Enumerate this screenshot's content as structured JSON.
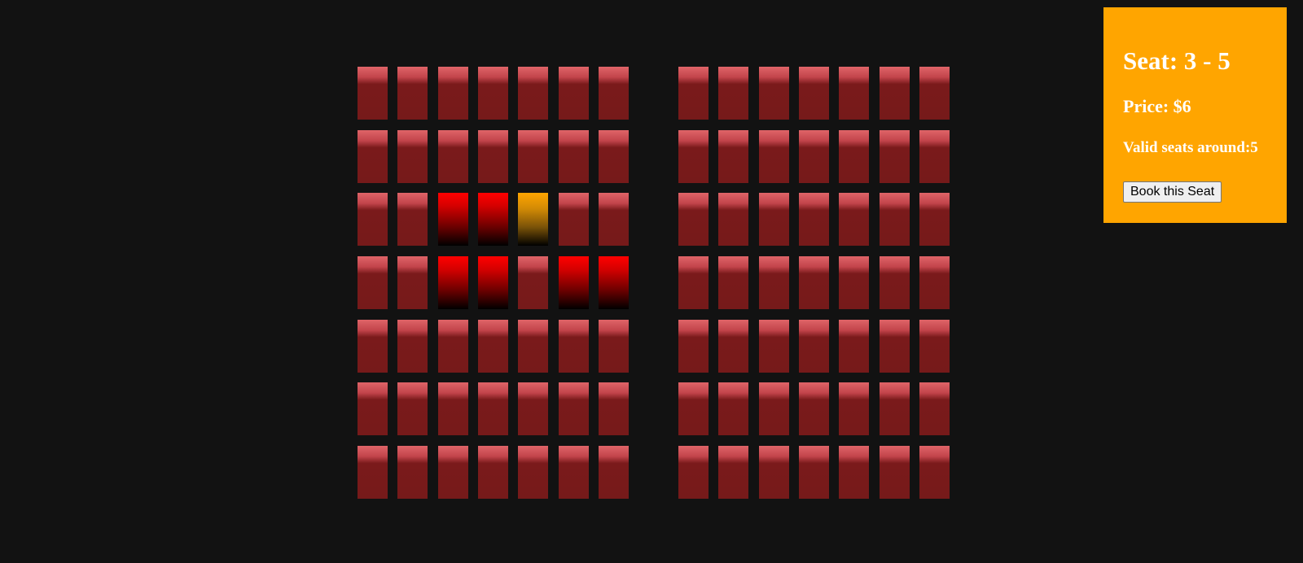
{
  "seat_map": {
    "sections": 2,
    "rows": 7,
    "seats_per_row_per_section": 7,
    "seat_colors": {
      "available": "#761a1a",
      "highlighted": "#ff0000",
      "selected": "#ffa500"
    },
    "highlighted_seats": [
      {
        "section": 0,
        "row": 2,
        "col": 2
      },
      {
        "section": 0,
        "row": 2,
        "col": 3
      },
      {
        "section": 0,
        "row": 3,
        "col": 2
      },
      {
        "section": 0,
        "row": 3,
        "col": 3
      },
      {
        "section": 0,
        "row": 3,
        "col": 5
      },
      {
        "section": 0,
        "row": 3,
        "col": 6
      }
    ],
    "selected_seat": {
      "section": 0,
      "row": 2,
      "col": 4
    }
  },
  "info_panel": {
    "background": "#ffa500",
    "seat_label": "Seat: 3 - 5",
    "price_label": "Price: $6",
    "valid_seats_label": "Valid seats around:5",
    "book_button_label": "Book this Seat"
  }
}
